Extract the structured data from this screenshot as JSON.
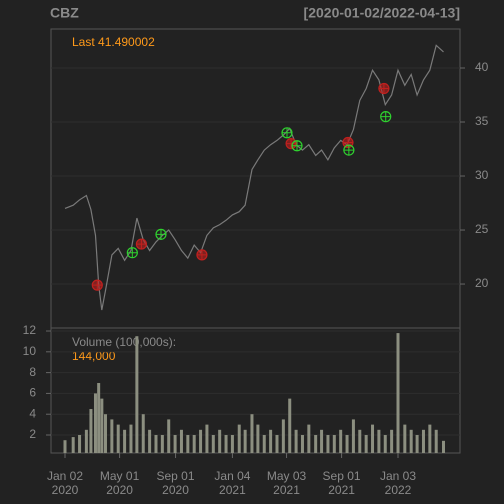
{
  "chart_data": [
    {
      "type": "line",
      "title": "CBZ",
      "subtitle": "[2020-01-02/2022-04-13]",
      "annotation": "Last 41.490002",
      "x": [
        "2020-01-02",
        "2020-01-20",
        "2020-02-03",
        "2020-02-18",
        "2020-02-28",
        "2020-03-09",
        "2020-03-16",
        "2020-03-23",
        "2020-03-31",
        "2020-04-14",
        "2020-04-28",
        "2020-05-12",
        "2020-05-26",
        "2020-06-08",
        "2020-06-22",
        "2020-07-06",
        "2020-07-20",
        "2020-08-03",
        "2020-08-17",
        "2020-08-31",
        "2020-09-14",
        "2020-09-28",
        "2020-10-12",
        "2020-10-26",
        "2020-11-09",
        "2020-11-23",
        "2020-12-07",
        "2020-12-21",
        "2021-01-04",
        "2021-01-19",
        "2021-02-01",
        "2021-02-16",
        "2021-03-01",
        "2021-03-15",
        "2021-03-29",
        "2021-04-12",
        "2021-04-26",
        "2021-05-10",
        "2021-05-24",
        "2021-06-07",
        "2021-06-21",
        "2021-07-06",
        "2021-07-19",
        "2021-08-02",
        "2021-08-16",
        "2021-08-30",
        "2021-09-13",
        "2021-09-27",
        "2021-10-11",
        "2021-10-25",
        "2021-11-08",
        "2021-11-22",
        "2021-12-06",
        "2021-12-20",
        "2022-01-03",
        "2022-01-18",
        "2022-02-01",
        "2022-02-14",
        "2022-02-28",
        "2022-03-14",
        "2022-03-28",
        "2022-04-13"
      ],
      "series": [
        {
          "color": "#7a7a7a",
          "values": [
            27.0,
            27.3,
            27.8,
            28.2,
            26.9,
            24.5,
            19.9,
            17.6,
            19.4,
            22.7,
            23.3,
            22.2,
            23.1,
            26.1,
            24.1,
            23.1,
            23.9,
            24.5,
            25.0,
            24.1,
            23.1,
            22.4,
            23.6,
            22.9,
            24.5,
            25.2,
            25.5,
            25.9,
            26.4,
            26.7,
            27.3,
            30.6,
            31.5,
            32.4,
            32.9,
            33.3,
            33.8,
            34.4,
            32.9,
            32.4,
            32.9,
            31.9,
            32.4,
            31.5,
            32.6,
            33.3,
            32.9,
            34.3,
            37.0,
            38.1,
            39.8,
            38.9,
            36.6,
            37.5,
            39.8,
            38.4,
            39.4,
            37.5,
            38.9,
            39.8,
            42.1,
            41.49
          ]
        }
      ],
      "points": [
        {
          "color": "#c0201e",
          "x": [
            "2020-03-13",
            "2020-06-18",
            "2020-10-29",
            "2021-05-13",
            "2021-09-15",
            "2021-12-03"
          ],
          "values": [
            19.9,
            23.7,
            22.7,
            33.0,
            33.1,
            38.1
          ]
        },
        {
          "color": "#2fd12f",
          "x": [
            "2020-05-29",
            "2020-07-31",
            "2021-05-04",
            "2021-05-26",
            "2021-09-17",
            "2021-12-07"
          ],
          "values": [
            22.9,
            24.6,
            34.0,
            32.8,
            32.4,
            35.5
          ]
        }
      ],
      "xlim": [
        "2020-01-02",
        "2022-04-13"
      ],
      "ylim": [
        15.93,
        43.61
      ],
      "yticks": [
        20,
        25,
        30,
        35,
        40
      ],
      "grid": true
    },
    {
      "type": "bar",
      "title": "Volume (100,000s):",
      "annotation": "144,000",
      "color": "#8c8f80",
      "x": [
        "2020-01-02",
        "2020-01-20",
        "2020-02-03",
        "2020-02-18",
        "2020-02-28",
        "2020-03-09",
        "2020-03-16",
        "2020-03-23",
        "2020-03-31",
        "2020-04-14",
        "2020-04-28",
        "2020-05-12",
        "2020-05-26",
        "2020-06-08",
        "2020-06-22",
        "2020-07-06",
        "2020-07-20",
        "2020-08-03",
        "2020-08-17",
        "2020-08-31",
        "2020-09-14",
        "2020-09-28",
        "2020-10-12",
        "2020-10-26",
        "2020-11-09",
        "2020-11-23",
        "2020-12-07",
        "2020-12-21",
        "2021-01-04",
        "2021-01-19",
        "2021-02-01",
        "2021-02-16",
        "2021-03-01",
        "2021-03-15",
        "2021-03-29",
        "2021-04-12",
        "2021-04-26",
        "2021-05-10",
        "2021-05-24",
        "2021-06-07",
        "2021-06-21",
        "2021-07-06",
        "2021-07-19",
        "2021-08-02",
        "2021-08-16",
        "2021-08-30",
        "2021-09-13",
        "2021-09-27",
        "2021-10-11",
        "2021-10-25",
        "2021-11-08",
        "2021-11-22",
        "2021-12-06",
        "2021-12-20",
        "2022-01-03",
        "2022-01-18",
        "2022-02-01",
        "2022-02-14",
        "2022-02-28",
        "2022-03-14",
        "2022-03-28",
        "2022-04-13"
      ],
      "values": [
        1.5,
        1.8,
        2.0,
        2.5,
        4.5,
        6.0,
        7.0,
        5.5,
        4.0,
        3.5,
        3.0,
        2.5,
        3.0,
        11.5,
        4.0,
        2.5,
        2.0,
        2.0,
        3.5,
        2.0,
        2.5,
        2.0,
        2.0,
        2.5,
        3.0,
        2.0,
        2.5,
        2.0,
        2.0,
        3.0,
        2.5,
        4.0,
        3.0,
        2.0,
        2.5,
        2.0,
        3.5,
        5.5,
        2.5,
        2.0,
        3.0,
        2.0,
        2.5,
        2.0,
        2.0,
        2.5,
        2.0,
        3.5,
        2.5,
        2.0,
        3.0,
        2.5,
        2.0,
        2.5,
        11.8,
        3.0,
        2.5,
        2.0,
        2.5,
        3.0,
        2.5,
        1.44
      ],
      "xlim": [
        "2020-01-02",
        "2022-04-13"
      ],
      "ylim": [
        0.27,
        12.29
      ],
      "yticks": [
        2,
        4,
        6,
        8,
        10,
        12
      ],
      "grid": true,
      "xticks": [
        {
          "value": "2020-01-02",
          "label": "Jan 02\n2020"
        },
        {
          "value": "2020-05-01",
          "label": "May 01\n2020"
        },
        {
          "value": "2020-09-01",
          "label": "Sep 01\n2020"
        },
        {
          "value": "2021-01-04",
          "label": "Jan 04\n2021"
        },
        {
          "value": "2021-05-03",
          "label": "May 03\n2021"
        },
        {
          "value": "2021-09-01",
          "label": "Sep 01\n2021"
        },
        {
          "value": "2022-01-03",
          "label": "Jan 03\n2022"
        }
      ]
    }
  ]
}
